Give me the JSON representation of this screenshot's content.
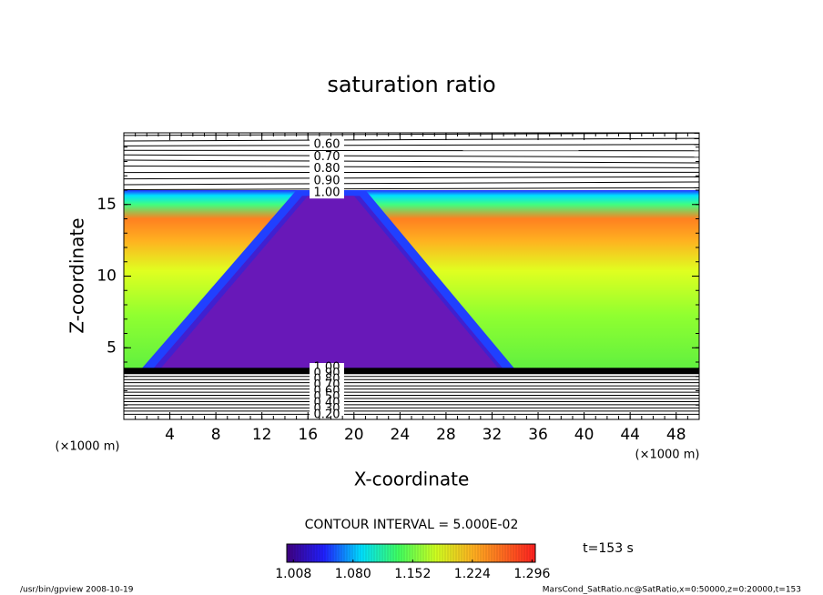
{
  "chart_data": {
    "type": "contour",
    "title": "saturation ratio",
    "xlabel": "X-coordinate",
    "ylabel": "Z-coordinate",
    "x_unit_left": "(×1000 m)",
    "x_unit_right": "(×1000 m)",
    "xlim": [
      0,
      50
    ],
    "ylim": [
      0,
      20
    ],
    "xticks": [
      4,
      8,
      12,
      16,
      20,
      24,
      28,
      32,
      36,
      40,
      44,
      48
    ],
    "yticks": [
      5,
      10,
      15
    ],
    "contour_labels_top": [
      {
        "value": 0.6,
        "label": "0.60"
      },
      {
        "value": 0.7,
        "label": "0.70"
      },
      {
        "value": 0.8,
        "label": "0.80"
      },
      {
        "value": 0.9,
        "label": "0.90"
      },
      {
        "value": 1.0,
        "label": "1.00"
      }
    ],
    "contour_labels_bottom": [
      {
        "value": 1.0,
        "label": "1.00"
      },
      {
        "value": 0.9,
        "label": "0.90"
      },
      {
        "value": 0.8,
        "label": "0.80"
      },
      {
        "value": 0.7,
        "label": "0.70"
      },
      {
        "value": 0.6,
        "label": "0.60"
      },
      {
        "value": 0.5,
        "label": "0.50"
      },
      {
        "value": 0.4,
        "label": "0.40"
      },
      {
        "value": 0.3,
        "label": "0.30"
      },
      {
        "value": 0.2,
        "label": "0.20"
      }
    ],
    "contour_interval": "CONTOUR INTERVAL = 5.000E-02",
    "time_label": "t=153 s",
    "clim": [
      1.0,
      1.3
    ],
    "colorbar_ticks": [
      {
        "value": 1.008,
        "label": "1.008"
      },
      {
        "value": 1.08,
        "label": "1.080"
      },
      {
        "value": 1.152,
        "label": "1.152"
      },
      {
        "value": 1.224,
        "label": "1.224"
      },
      {
        "value": 1.296,
        "label": "1.296"
      }
    ],
    "footer_left": "/usr/bin/gpview  2008-10-19",
    "footer_right": "MarsCond_SatRatio.nc@SatRatio,x=0:50000,z=0:20000,t=153"
  }
}
